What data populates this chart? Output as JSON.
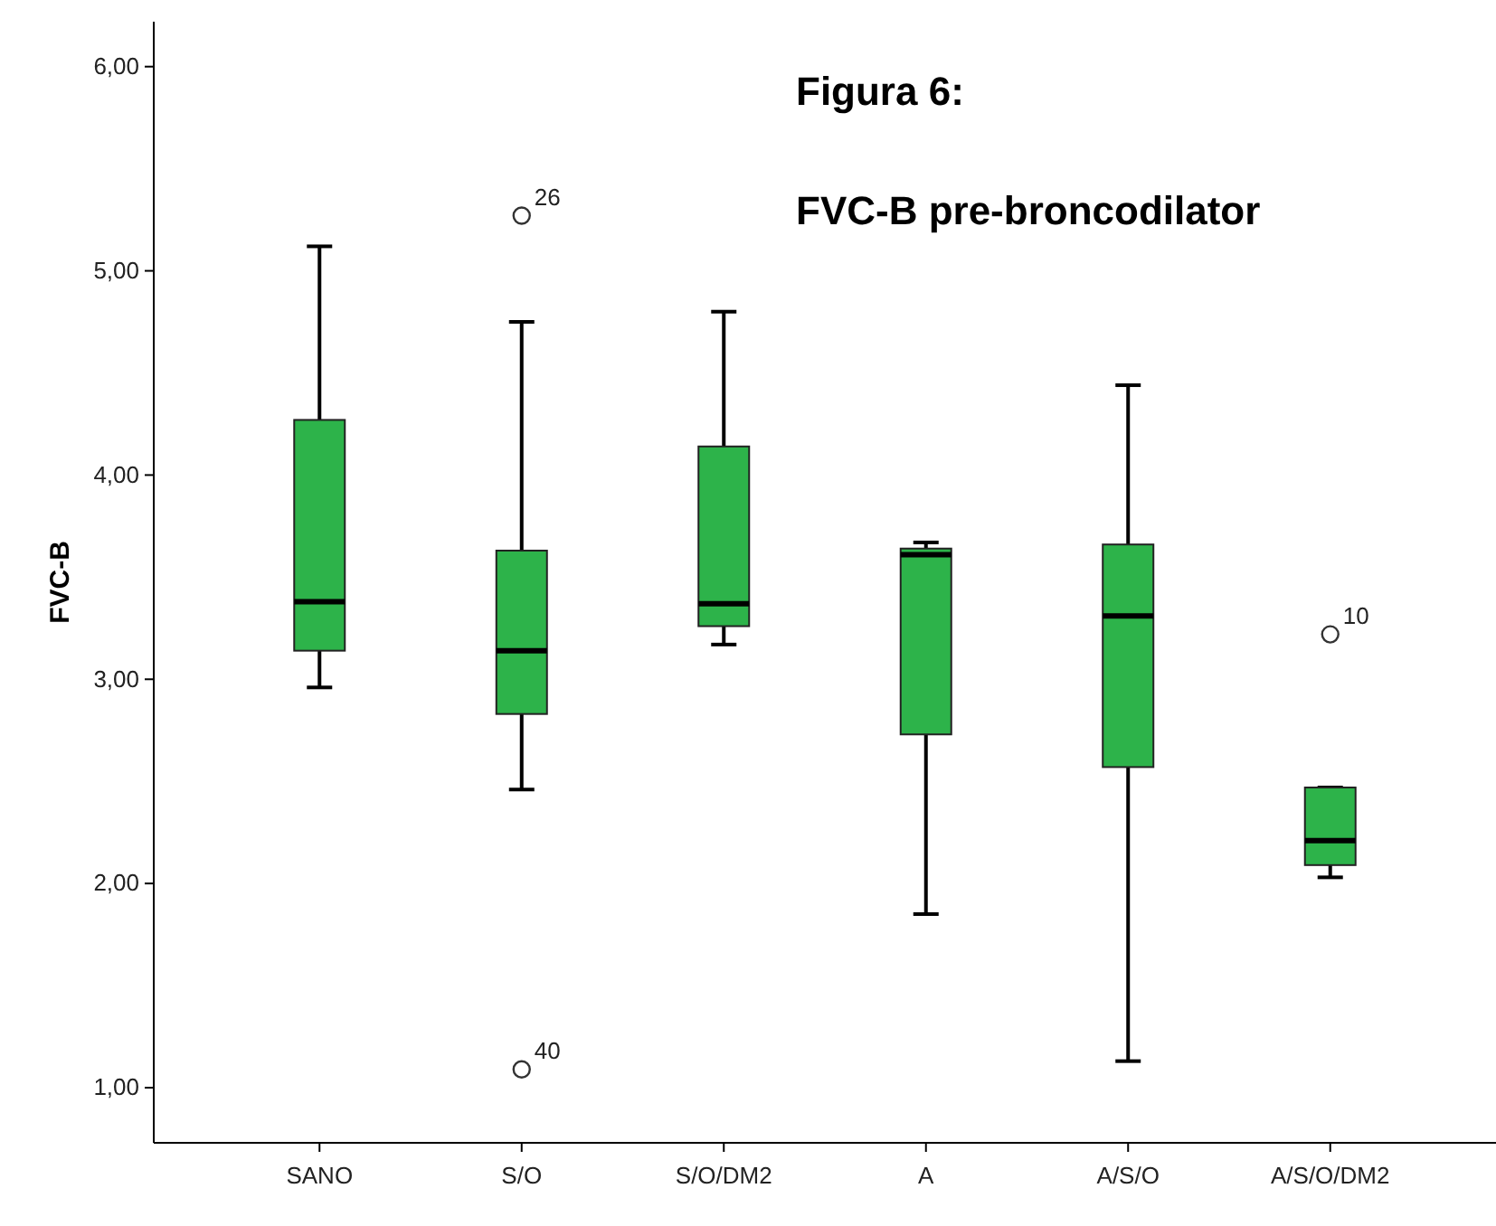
{
  "chart_data": {
    "type": "box",
    "title": "Figura 6:",
    "subtitle": "FVC-B pre-broncodilator",
    "ylabel": "FVC-B",
    "categories": [
      "SANO",
      "S/O",
      "S/O/DM2",
      "A",
      "A/S/O",
      "A/S/O/DM2"
    ],
    "color": "#2db34a",
    "boxes": [
      {
        "low": 2.96,
        "q1": 3.14,
        "median": 3.38,
        "q3": 4.27,
        "high": 5.12
      },
      {
        "low": 2.46,
        "q1": 2.83,
        "median": 3.14,
        "q3": 3.63,
        "high": 4.75,
        "outliers": [
          5.27,
          1.09
        ]
      },
      {
        "low": 3.17,
        "q1": 3.26,
        "median": 3.37,
        "q3": 4.14,
        "high": 4.8
      },
      {
        "low": 1.85,
        "q1": 2.73,
        "median": 3.61,
        "q3": 3.64,
        "high": 3.67
      },
      {
        "low": 1.13,
        "q1": 2.57,
        "median": 3.31,
        "q3": 3.66,
        "high": 4.44
      },
      {
        "low": 2.03,
        "q1": 2.09,
        "median": 2.21,
        "q3": 2.47,
        "high": 2.47,
        "outliers": [
          3.22
        ]
      }
    ],
    "annotations": [
      "26",
      "40",
      "10"
    ],
    "ylim": [
      0.73,
      6.22
    ],
    "yticks": [
      {
        "value": 1,
        "label": "1,00"
      },
      {
        "value": 2,
        "label": "2,00"
      },
      {
        "value": 3,
        "label": "3,00"
      },
      {
        "value": 4,
        "label": "4,00"
      },
      {
        "value": 5,
        "label": "5,00"
      },
      {
        "value": 6,
        "label": "6,00"
      }
    ]
  }
}
